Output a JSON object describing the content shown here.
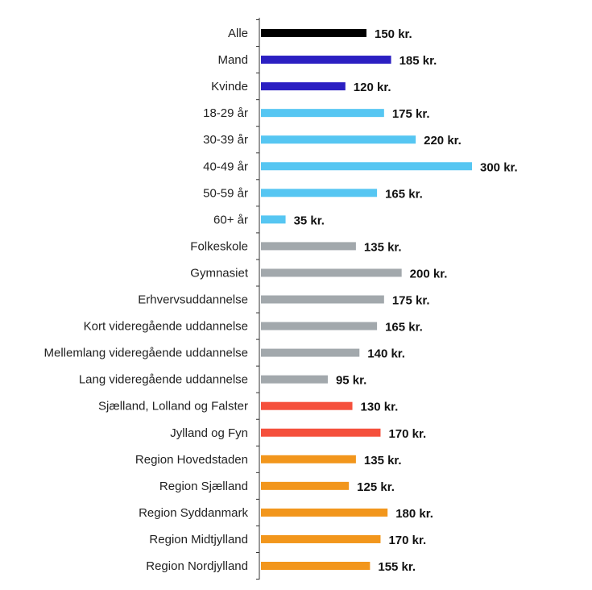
{
  "chart_data": {
    "type": "bar",
    "orientation": "horizontal",
    "title": "",
    "xlabel": "",
    "ylabel": "",
    "xlim": [
      0,
      300
    ],
    "grid": false,
    "legend": "none",
    "value_suffix": " kr.",
    "categories": [
      "Alle",
      "Mand",
      "Kvinde",
      "18-29 år",
      "30-39 år",
      "40-49 år",
      "50-59 år",
      "60+ år",
      "Folkeskole",
      "Gymnasiet",
      "Erhvervsuddannelse",
      "Kort videregående uddannelse",
      "Mellemlang videregående uddannelse",
      "Lang videregående uddannelse",
      "Sjælland, Lolland og Falster",
      "Jylland og Fyn",
      "Region Hovedstaden",
      "Region Sjælland",
      "Region Syddanmark",
      "Region Midtjylland",
      "Region Nordjylland"
    ],
    "values": [
      150,
      185,
      120,
      175,
      220,
      300,
      165,
      35,
      135,
      200,
      175,
      165,
      140,
      95,
      130,
      170,
      135,
      125,
      180,
      170,
      155
    ],
    "value_labels": [
      "150 kr.",
      "185 kr.",
      "120 kr.",
      "175 kr.",
      "220 kr.",
      "300 kr.",
      "165 kr.",
      "35 kr.",
      "135 kr.",
      "200 kr.",
      "175 kr.",
      "165 kr.",
      "140 kr.",
      "95 kr.",
      "130 kr.",
      "170 kr.",
      "135 kr.",
      "125 kr.",
      "180 kr.",
      "170 kr.",
      "155 kr."
    ],
    "bar_colors": [
      "#000000",
      "#2b1fc2",
      "#2b1fc2",
      "#56c6f2",
      "#56c6f2",
      "#56c6f2",
      "#56c6f2",
      "#56c6f2",
      "#a2a8ac",
      "#a2a8ac",
      "#a2a8ac",
      "#a2a8ac",
      "#a2a8ac",
      "#a2a8ac",
      "#f5503c",
      "#f5503c",
      "#f2961c",
      "#f2961c",
      "#f2961c",
      "#f2961c",
      "#f2961c"
    ]
  }
}
